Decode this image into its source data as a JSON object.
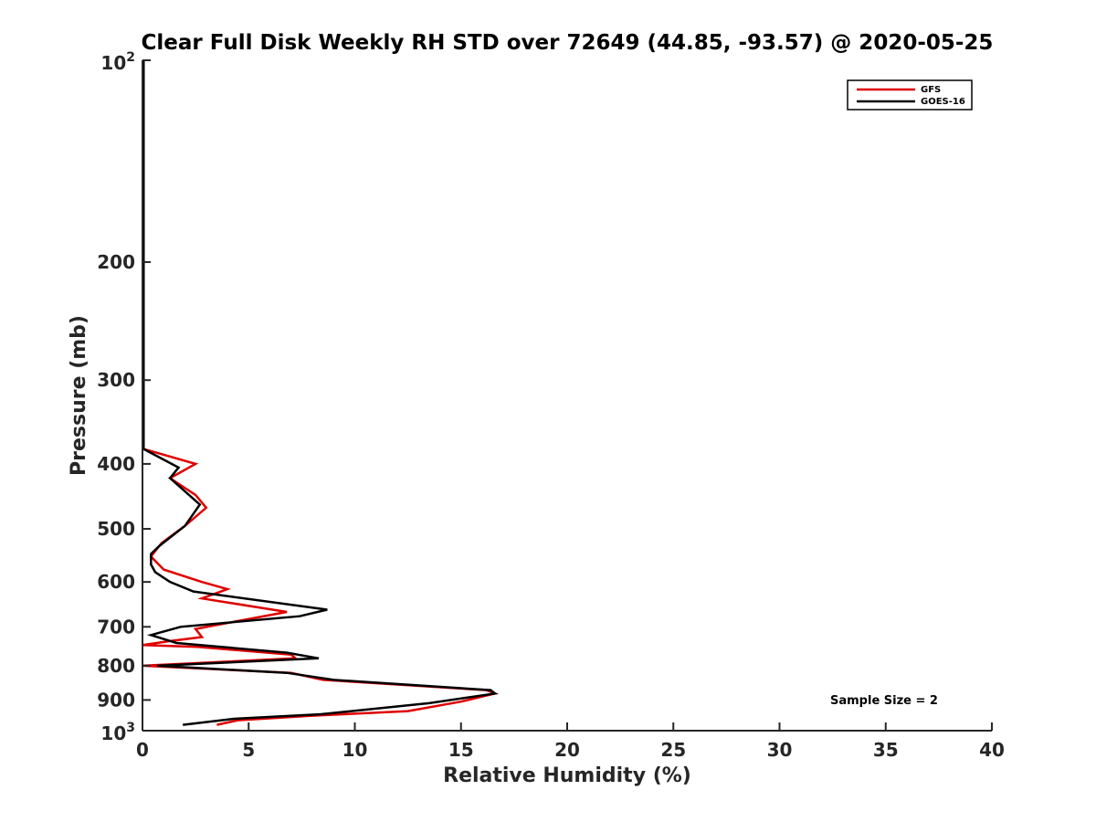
{
  "chart_data": {
    "type": "line",
    "title": "Clear Full Disk Weekly RH STD over 72649 (44.85, -93.57) @ 2020-05-25",
    "xlabel": "Relative Humidity (%)",
    "ylabel": "Pressure (mb)",
    "xlim": [
      0,
      40
    ],
    "ylim": [
      100,
      1000
    ],
    "y_scale": "log",
    "y_reversed": true,
    "grid": false,
    "legend_position": "top-right",
    "x_ticks": [
      "0",
      "5",
      "10",
      "15",
      "20",
      "25",
      "30",
      "35",
      "40"
    ],
    "y_ticks": [
      {
        "value": 100,
        "base": "10",
        "exp": "2"
      },
      {
        "value": 200,
        "label": "200"
      },
      {
        "value": 300,
        "label": "300"
      },
      {
        "value": 400,
        "label": "400"
      },
      {
        "value": 500,
        "label": "500"
      },
      {
        "value": 600,
        "label": "600"
      },
      {
        "value": 700,
        "label": "700"
      },
      {
        "value": 800,
        "label": "800"
      },
      {
        "value": 900,
        "label": "900"
      },
      {
        "value": 1000,
        "base": "10",
        "exp": "3"
      }
    ],
    "annotation": "Sample Size = 2",
    "series": [
      {
        "name": "GFS",
        "color": "#e00000",
        "points": [
          [
            0.05,
            100
          ],
          [
            0.05,
            200
          ],
          [
            0.05,
            300
          ],
          [
            0.05,
            380
          ],
          [
            2.5,
            400
          ],
          [
            1.3,
            420
          ],
          [
            2.5,
            445
          ],
          [
            3.0,
            465
          ],
          [
            2.0,
            495
          ],
          [
            0.9,
            525
          ],
          [
            0.4,
            550
          ],
          [
            1.0,
            575
          ],
          [
            2.8,
            600
          ],
          [
            4.0,
            615
          ],
          [
            2.8,
            635
          ],
          [
            6.8,
            665
          ],
          [
            2.5,
            705
          ],
          [
            2.8,
            725
          ],
          [
            1.3,
            735
          ],
          [
            0.0,
            745
          ],
          [
            2.6,
            750
          ],
          [
            7.0,
            770
          ],
          [
            7.2,
            780
          ],
          [
            0.0,
            800
          ],
          [
            7.0,
            820
          ],
          [
            8.5,
            840
          ],
          [
            16.2,
            870
          ],
          [
            16.6,
            880
          ],
          [
            15.0,
            905
          ],
          [
            12.5,
            935
          ],
          [
            8.0,
            950
          ],
          [
            4.5,
            965
          ],
          [
            3.5,
            980
          ]
        ]
      },
      {
        "name": "GOES-16",
        "color": "#000000",
        "points": [
          [
            0.05,
            100
          ],
          [
            0.05,
            200
          ],
          [
            0.05,
            300
          ],
          [
            0.05,
            380
          ],
          [
            1.7,
            405
          ],
          [
            1.3,
            420
          ],
          [
            2.7,
            460
          ],
          [
            2.0,
            495
          ],
          [
            0.8,
            530
          ],
          [
            0.4,
            545
          ],
          [
            0.4,
            565
          ],
          [
            0.6,
            580
          ],
          [
            1.3,
            600
          ],
          [
            2.4,
            620
          ],
          [
            8.7,
            660
          ],
          [
            7.4,
            675
          ],
          [
            1.8,
            700
          ],
          [
            0.4,
            720
          ],
          [
            1.6,
            740
          ],
          [
            6.8,
            765
          ],
          [
            8.3,
            780
          ],
          [
            0.7,
            800
          ],
          [
            6.8,
            820
          ],
          [
            9.0,
            840
          ],
          [
            16.4,
            870
          ],
          [
            16.6,
            880
          ],
          [
            13.5,
            910
          ],
          [
            8.4,
            945
          ],
          [
            4.3,
            960
          ],
          [
            1.9,
            980
          ]
        ]
      }
    ]
  }
}
